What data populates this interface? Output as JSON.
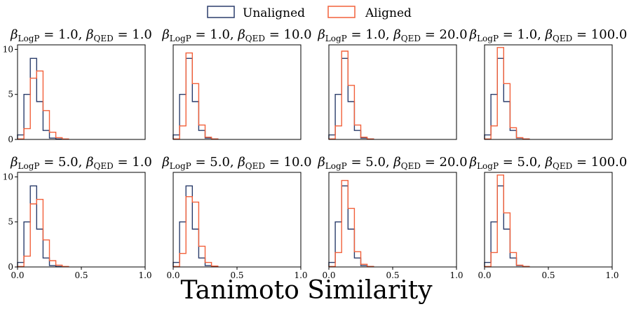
{
  "chart_data": {
    "type": "histogram",
    "xlabel": "Tanimoto Similarity",
    "legend": {
      "placement": "top-center",
      "entries": [
        {
          "name": "Unaligned",
          "color": "#2b3d6b"
        },
        {
          "name": "Aligned",
          "color": "#f2603a"
        }
      ]
    },
    "bins": [
      0.0,
      0.05,
      0.1,
      0.15,
      0.2,
      0.25,
      0.3,
      0.35,
      0.4,
      0.45,
      0.5,
      0.55,
      0.6,
      0.65,
      0.7,
      0.75,
      0.8,
      0.85,
      0.9,
      0.95,
      1.0
    ],
    "xlim": [
      0.0,
      1.0
    ],
    "xticks": [
      "0.0",
      "0.5",
      "1.0"
    ],
    "yticks": [
      "0",
      "5",
      "10"
    ],
    "panels": [
      {
        "title_base": "β",
        "title_sub1": "LogP",
        "title_val1": " = 1.0,  ",
        "title_sub2": "QED",
        "title_val2": " = 1.0",
        "ylim": [
          0,
          10.5
        ],
        "series": [
          {
            "name": "Unaligned",
            "values": [
              0.5,
              5.0,
              9.0,
              4.2,
              1.0,
              0.15,
              0.05,
              0,
              0,
              0,
              0,
              0,
              0,
              0,
              0,
              0,
              0,
              0,
              0,
              0
            ]
          },
          {
            "name": "Aligned",
            "values": [
              0.05,
              1.2,
              6.8,
              7.6,
              3.2,
              0.8,
              0.2,
              0.05,
              0,
              0,
              0,
              0,
              0,
              0,
              0,
              0,
              0,
              0,
              0,
              0
            ]
          }
        ]
      },
      {
        "title_base": "β",
        "title_sub1": "LogP",
        "title_val1": " = 1.0,  ",
        "title_sub2": "QED",
        "title_val2": " = 10.0",
        "ylim": [
          0,
          10.5
        ],
        "series": [
          {
            "name": "Unaligned",
            "values": [
              0.5,
              5.0,
              9.0,
              4.2,
              1.0,
              0.15,
              0.05,
              0,
              0,
              0,
              0,
              0,
              0,
              0,
              0,
              0,
              0,
              0,
              0,
              0
            ]
          },
          {
            "name": "Aligned",
            "values": [
              0.05,
              1.5,
              9.6,
              6.2,
              1.6,
              0.25,
              0.05,
              0,
              0,
              0,
              0,
              0,
              0,
              0,
              0,
              0,
              0,
              0,
              0,
              0
            ]
          }
        ]
      },
      {
        "title_base": "β",
        "title_sub1": "LogP",
        "title_val1": " = 1.0,  ",
        "title_sub2": "QED",
        "title_val2": " = 20.0",
        "ylim": [
          0,
          10.5
        ],
        "series": [
          {
            "name": "Unaligned",
            "values": [
              0.5,
              5.0,
              9.0,
              4.2,
              1.0,
              0.15,
              0.05,
              0,
              0,
              0,
              0,
              0,
              0,
              0,
              0,
              0,
              0,
              0,
              0,
              0
            ]
          },
          {
            "name": "Aligned",
            "values": [
              0.05,
              1.5,
              9.8,
              6.0,
              1.6,
              0.25,
              0.05,
              0,
              0,
              0,
              0,
              0,
              0,
              0,
              0,
              0,
              0,
              0,
              0,
              0
            ]
          }
        ]
      },
      {
        "title_base": "β",
        "title_sub1": "LogP",
        "title_val1": " = 1.0,  ",
        "title_sub2": "QED",
        "title_val2": " = 100.0",
        "ylim": [
          0,
          10.5
        ],
        "series": [
          {
            "name": "Unaligned",
            "values": [
              0.5,
              5.0,
              9.0,
              4.2,
              1.0,
              0.15,
              0.05,
              0,
              0,
              0,
              0,
              0,
              0,
              0,
              0,
              0,
              0,
              0,
              0,
              0
            ]
          },
          {
            "name": "Aligned",
            "values": [
              0.05,
              1.5,
              10.2,
              6.2,
              1.3,
              0.2,
              0.05,
              0,
              0,
              0,
              0,
              0,
              0,
              0,
              0,
              0,
              0,
              0,
              0,
              0
            ]
          }
        ]
      },
      {
        "title_base": "β",
        "title_sub1": "LogP",
        "title_val1": " = 5.0,  ",
        "title_sub2": "QED",
        "title_val2": " = 1.0",
        "ylim": [
          0,
          10.5
        ],
        "series": [
          {
            "name": "Unaligned",
            "values": [
              0.5,
              5.0,
              9.0,
              4.2,
              1.0,
              0.15,
              0.05,
              0,
              0,
              0,
              0,
              0,
              0,
              0,
              0,
              0,
              0,
              0,
              0,
              0
            ]
          },
          {
            "name": "Aligned",
            "values": [
              0.05,
              1.2,
              7.0,
              7.5,
              3.0,
              0.7,
              0.2,
              0.05,
              0,
              0,
              0,
              0,
              0,
              0,
              0,
              0,
              0,
              0,
              0,
              0
            ]
          }
        ]
      },
      {
        "title_base": "β",
        "title_sub1": "LogP",
        "title_val1": " = 5.0,  ",
        "title_sub2": "QED",
        "title_val2": " = 10.0",
        "ylim": [
          0,
          10.5
        ],
        "series": [
          {
            "name": "Unaligned",
            "values": [
              0.5,
              5.0,
              9.0,
              4.2,
              1.0,
              0.15,
              0.05,
              0,
              0,
              0,
              0,
              0,
              0,
              0,
              0,
              0,
              0,
              0,
              0,
              0
            ]
          },
          {
            "name": "Aligned",
            "values": [
              0.05,
              1.5,
              7.8,
              7.2,
              2.3,
              0.5,
              0.1,
              0,
              0,
              0,
              0,
              0,
              0,
              0,
              0,
              0,
              0,
              0,
              0,
              0
            ]
          }
        ]
      },
      {
        "title_base": "β",
        "title_sub1": "LogP",
        "title_val1": " = 5.0,  ",
        "title_sub2": "QED",
        "title_val2": " = 20.0",
        "ylim": [
          0,
          10.5
        ],
        "series": [
          {
            "name": "Unaligned",
            "values": [
              0.5,
              5.0,
              9.0,
              4.2,
              1.0,
              0.15,
              0.05,
              0,
              0,
              0,
              0,
              0,
              0,
              0,
              0,
              0,
              0,
              0,
              0,
              0
            ]
          },
          {
            "name": "Aligned",
            "values": [
              0.05,
              1.6,
              9.6,
              6.5,
              1.7,
              0.3,
              0.05,
              0,
              0,
              0,
              0,
              0,
              0,
              0,
              0,
              0,
              0,
              0,
              0,
              0
            ]
          }
        ]
      },
      {
        "title_base": "β",
        "title_sub1": "LogP",
        "title_val1": " = 5.0,  ",
        "title_sub2": "QED",
        "title_val2": " = 100.0",
        "ylim": [
          0,
          10.5
        ],
        "series": [
          {
            "name": "Unaligned",
            "values": [
              0.5,
              5.0,
              9.0,
              4.2,
              1.0,
              0.15,
              0.05,
              0,
              0,
              0,
              0,
              0,
              0,
              0,
              0,
              0,
              0,
              0,
              0,
              0
            ]
          },
          {
            "name": "Aligned",
            "values": [
              0.05,
              1.6,
              10.2,
              6.0,
              1.6,
              0.2,
              0.05,
              0,
              0,
              0,
              0,
              0,
              0,
              0,
              0,
              0,
              0,
              0,
              0,
              0
            ]
          }
        ]
      }
    ]
  }
}
